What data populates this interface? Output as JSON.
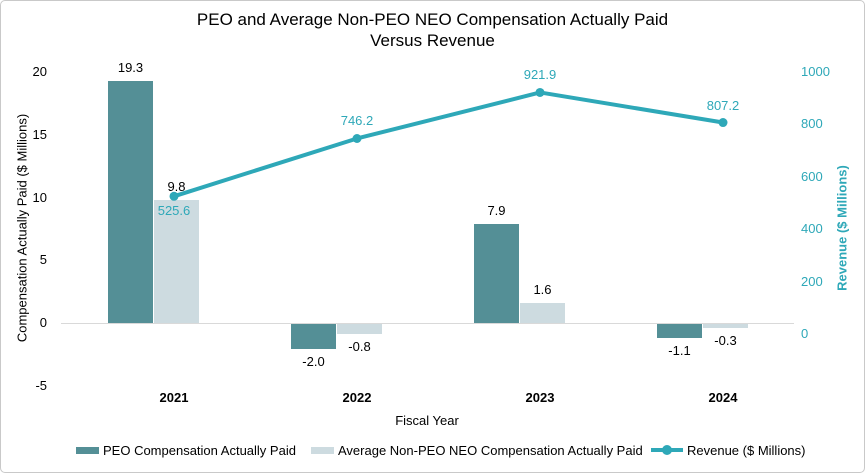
{
  "title": {
    "line1": "PEO and Average Non-PEO NEO Compensation Actually Paid",
    "line2": "Versus Revenue"
  },
  "axes": {
    "left": {
      "title": "Compensation Actually Paid ($ Millions)",
      "tick_labels": [
        "20",
        "15",
        "10",
        "5",
        "0",
        "-5"
      ],
      "tick_values": [
        20,
        15,
        10,
        5,
        0,
        -5
      ]
    },
    "right": {
      "title": "Revenue ($ Millions)",
      "tick_labels": [
        "1000",
        "800",
        "600",
        "400",
        "200",
        "0"
      ],
      "tick_values": [
        1000,
        800,
        600,
        400,
        200,
        0
      ]
    },
    "x": {
      "title": "Fiscal Year",
      "labels": [
        "2021",
        "2022",
        "2023",
        "2024"
      ]
    }
  },
  "chart_data": {
    "type": "combo-bar-line",
    "title": "PEO and Average Non-PEO NEO Compensation Actually Paid Versus Revenue",
    "xlabel": "Fiscal Year",
    "ylabel_left": "Compensation Actually Paid ($ Millions)",
    "ylabel_right": "Revenue ($ Millions)",
    "categories": [
      "2021",
      "2022",
      "2023",
      "2024"
    ],
    "series": [
      {
        "name": "PEO Compensation Actually Paid",
        "type": "bar",
        "axis": "left",
        "color": "#548f96",
        "values": [
          19.3,
          -2.0,
          7.9,
          -1.1
        ],
        "labels": [
          "19.3",
          "-2.0",
          "7.9",
          "-1.1"
        ]
      },
      {
        "name": "Average Non-PEO NEO Compensation Actually Paid",
        "type": "bar",
        "axis": "left",
        "color": "#cddbe0",
        "values": [
          9.8,
          -0.8,
          1.6,
          -0.3
        ],
        "labels": [
          "9.8",
          "-0.8",
          "1.6",
          "-0.3"
        ]
      },
      {
        "name": "Revenue ($ Millions)",
        "type": "line",
        "axis": "right",
        "color": "#2ea8b8",
        "values": [
          525.6,
          746.2,
          921.9,
          807.2
        ],
        "labels": [
          "525.6",
          "746.2",
          "921.9",
          "807.2"
        ]
      }
    ],
    "ylim_left": [
      -5,
      20
    ],
    "ylim_right": [
      -200,
      1000
    ],
    "grid": false,
    "legend_position": "bottom"
  },
  "colors": {
    "peo_bar": "#548f96",
    "neo_bar": "#cddbe0",
    "revenue_line": "#2ea8b8",
    "axis_line": "#d9d9d9",
    "text": "#000000"
  }
}
